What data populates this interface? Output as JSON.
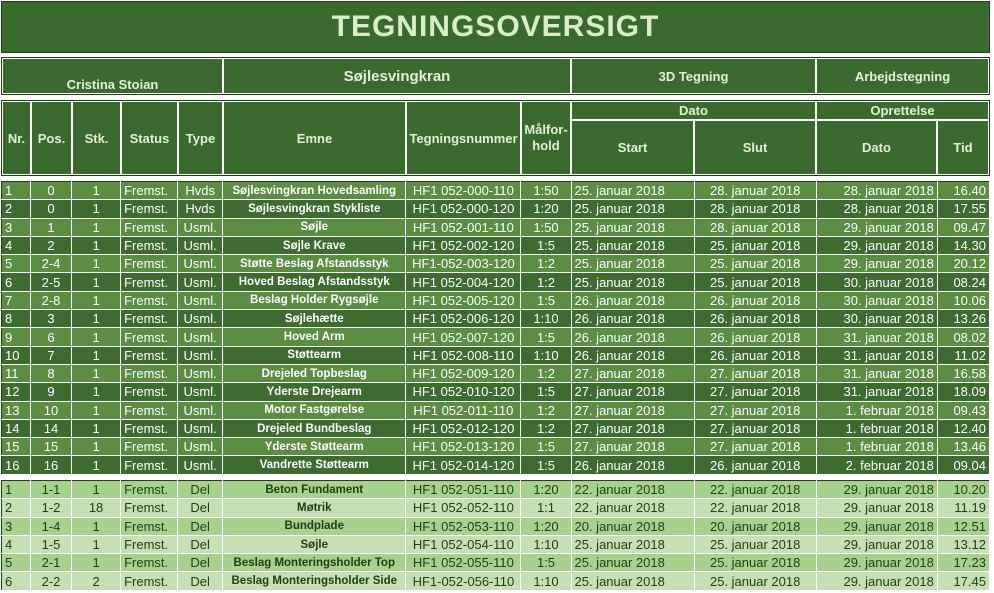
{
  "title": "TEGNINGSOVERSIGT",
  "header_top": {
    "author": "Cristina Stoian",
    "project": "Søjlesvingkran",
    "tegning_3d": "3D Tegning",
    "arbejdstegning": "Arbejdstegning"
  },
  "columns": {
    "nr": "Nr.",
    "pos": "Pos.",
    "stk": "Stk.",
    "status": "Status",
    "type": "Type",
    "emne": "Emne",
    "tegningsnummer": "Tegningsnummer",
    "maalforhold": "Målfor-hold",
    "dato": "Dato",
    "start": "Start",
    "slut": "Slut",
    "oprettelse": "Oprettelse",
    "opr_dato": "Dato",
    "tid": "Tid"
  },
  "group1": [
    {
      "nr": "1",
      "pos": "0",
      "stk": "1",
      "status": "Fremst.",
      "type": "Hvds",
      "emne": "Søjlesvingkran Hovedsamling",
      "tegn": "HF1 052-000-110",
      "maal": "1:50",
      "start": "25. januar 2018",
      "slut": "28. januar 2018",
      "dato": "28. januar 2018",
      "tid": "16.40"
    },
    {
      "nr": "2",
      "pos": "0",
      "stk": "1",
      "status": "Fremst.",
      "type": "Hvds",
      "emne": "Søjlesvingkran Stykliste",
      "tegn": "HF1 052-000-120",
      "maal": "1:20",
      "start": "25. januar 2018",
      "slut": "28. januar 2018",
      "dato": "28. januar 2018",
      "tid": "17.55"
    },
    {
      "nr": "3",
      "pos": "1",
      "stk": "1",
      "status": "Fremst.",
      "type": "Usml.",
      "emne": "Søjle",
      "tegn": "HF1 052-001-110",
      "maal": "1:50",
      "start": "25. januar 2018",
      "slut": "28. januar 2018",
      "dato": "29. januar 2018",
      "tid": "09.47"
    },
    {
      "nr": "4",
      "pos": "2",
      "stk": "1",
      "status": "Fremst.",
      "type": "Usml.",
      "emne": "Søjle Krave",
      "tegn": "HF1 052-002-120",
      "maal": "1:5",
      "start": "25. januar 2018",
      "slut": "25. januar 2018",
      "dato": "29. januar 2018",
      "tid": "14.30"
    },
    {
      "nr": "5",
      "pos": "2-4",
      "stk": "1",
      "status": "Fremst.",
      "type": "Usml.",
      "emne": "Støtte Beslag Afstandsstyk",
      "tegn": "HF1-052-003-120",
      "maal": "1:2",
      "start": "25. januar 2018",
      "slut": "25. januar 2018",
      "dato": "29. januar 2018",
      "tid": "20.12"
    },
    {
      "nr": "6",
      "pos": "2-5",
      "stk": "1",
      "status": "Fremst.",
      "type": "Usml.",
      "emne": "Hoved Beslag Afstandsstyk",
      "tegn": "HF1 052-004-120",
      "maal": "1:2",
      "start": "25. januar 2018",
      "slut": "25. januar 2018",
      "dato": "30. januar 2018",
      "tid": "08.24"
    },
    {
      "nr": "7",
      "pos": "2-8",
      "stk": "1",
      "status": "Fremst.",
      "type": "Usml.",
      "emne": "Beslag Holder Rygsøjle",
      "tegn": "HF1 052-005-120",
      "maal": "1:5",
      "start": "26. januar 2018",
      "slut": "26. januar 2018",
      "dato": "30. januar 2018",
      "tid": "10.06"
    },
    {
      "nr": "8",
      "pos": "3",
      "stk": "1",
      "status": "Fremst.",
      "type": "Usml.",
      "emne": "Søjlehætte",
      "tegn": "HF1 052-006-120",
      "maal": "1:10",
      "start": "26. januar 2018",
      "slut": "26. januar 2018",
      "dato": "30. januar 2018",
      "tid": "13.26"
    },
    {
      "nr": "9",
      "pos": "6",
      "stk": "1",
      "status": "Fremst.",
      "type": "Usml.",
      "emne": "Hoved Arm",
      "tegn": "HF1 052-007-120",
      "maal": "1:5",
      "start": "26. januar 2018",
      "slut": "26. januar 2018",
      "dato": "31. januar 2018",
      "tid": "08.02"
    },
    {
      "nr": "10",
      "pos": "7",
      "stk": "1",
      "status": "Fremst.",
      "type": "Usml.",
      "emne": "Støttearm",
      "tegn": "HF1 052-008-110",
      "maal": "1:10",
      "start": "26. januar 2018",
      "slut": "26. januar 2018",
      "dato": "31. januar 2018",
      "tid": "11.02"
    },
    {
      "nr": "11",
      "pos": "8",
      "stk": "1",
      "status": "Fremst.",
      "type": "Usml.",
      "emne": "Drejeled Topbeslag",
      "tegn": "HF1 052-009-120",
      "maal": "1:2",
      "start": "27. januar 2018",
      "slut": "27. januar 2018",
      "dato": "31. januar 2018",
      "tid": "16.58"
    },
    {
      "nr": "12",
      "pos": "9",
      "stk": "1",
      "status": "Fremst.",
      "type": "Usml.",
      "emne": "Yderste Drejearm",
      "tegn": "HF1 052-010-120",
      "maal": "1:5",
      "start": "27. januar 2018",
      "slut": "27. januar 2018",
      "dato": "31. januar 2018",
      "tid": "18.09"
    },
    {
      "nr": "13",
      "pos": "10",
      "stk": "1",
      "status": "Fremst.",
      "type": "Usml.",
      "emne": "Motor Fastgørelse",
      "tegn": "HF1 052-011-110",
      "maal": "1:2",
      "start": "27. januar 2018",
      "slut": "27. januar 2018",
      "dato": "1. februar 2018",
      "tid": "09.43"
    },
    {
      "nr": "14",
      "pos": "14",
      "stk": "1",
      "status": "Fremst.",
      "type": "Usml.",
      "emne": "Drejeled Bundbeslag",
      "tegn": "HF1 052-012-120",
      "maal": "1:2",
      "start": "27. januar 2018",
      "slut": "27. januar 2018",
      "dato": "1. februar 2018",
      "tid": "12.40"
    },
    {
      "nr": "15",
      "pos": "15",
      "stk": "1",
      "status": "Fremst.",
      "type": "Usml.",
      "emne": "Yderste Støttearm",
      "tegn": "HF1 052-013-120",
      "maal": "1:5",
      "start": "27. januar 2018",
      "slut": "27. januar 2018",
      "dato": "1. februar 2018",
      "tid": "13.46"
    },
    {
      "nr": "16",
      "pos": "16",
      "stk": "1",
      "status": "Fremst.",
      "type": "Usml.",
      "emne": "Vandrette Støttearm",
      "tegn": "HF1 052-014-120",
      "maal": "1:5",
      "start": "26. januar 2018",
      "slut": "26. januar 2018",
      "dato": "2. februar 2018",
      "tid": "09.04"
    }
  ],
  "group2": [
    {
      "nr": "1",
      "pos": "1-1",
      "stk": "1",
      "status": "Fremst.",
      "type": "Del",
      "emne": "Beton Fundament",
      "tegn": "HF1 052-051-110",
      "maal": "1:20",
      "start": "22. januar 2018",
      "slut": "22. januar 2018",
      "dato": "29. januar 2018",
      "tid": "10.20"
    },
    {
      "nr": "2",
      "pos": "1-2",
      "stk": "18",
      "status": "Fremst.",
      "type": "Del",
      "emne": "Møtrik",
      "tegn": "HF1 052-052-110",
      "maal": "1:1",
      "start": "22. januar 2018",
      "slut": "22. januar 2018",
      "dato": "29. januar 2018",
      "tid": "11.19"
    },
    {
      "nr": "3",
      "pos": "1-4",
      "stk": "1",
      "status": "Fremst.",
      "type": "Del",
      "emne": "Bundplade",
      "tegn": "HF1 052-053-110",
      "maal": "1:20",
      "start": "20. januar 2018",
      "slut": "20. januar 2018",
      "dato": "29. januar 2018",
      "tid": "12.51"
    },
    {
      "nr": "4",
      "pos": "1-5",
      "stk": "1",
      "status": "Fremst.",
      "type": "Del",
      "emne": "Søjle",
      "tegn": "HF1 052-054-110",
      "maal": "1:10",
      "start": "25. januar 2018",
      "slut": "25. januar 2018",
      "dato": "29. januar 2018",
      "tid": "13.12"
    },
    {
      "nr": "5",
      "pos": "2-1",
      "stk": "1",
      "status": "Fremst.",
      "type": "Del",
      "emne": "Beslag Monteringsholder Top",
      "tegn": "HF1 052-055-110",
      "maal": "1:5",
      "start": "25. januar 2018",
      "slut": "25. januar 2018",
      "dato": "29. januar 2018",
      "tid": "17.23"
    },
    {
      "nr": "6",
      "pos": "2-2",
      "stk": "2",
      "status": "Fremst.",
      "type": "Del",
      "emne": "Beslag Monteringsholder Side",
      "tegn": "HF1-052-056-110",
      "maal": "1:10",
      "start": "25. januar 2018",
      "slut": "25. januar 2018",
      "dato": "29. januar 2018",
      "tid": "17.45"
    }
  ]
}
